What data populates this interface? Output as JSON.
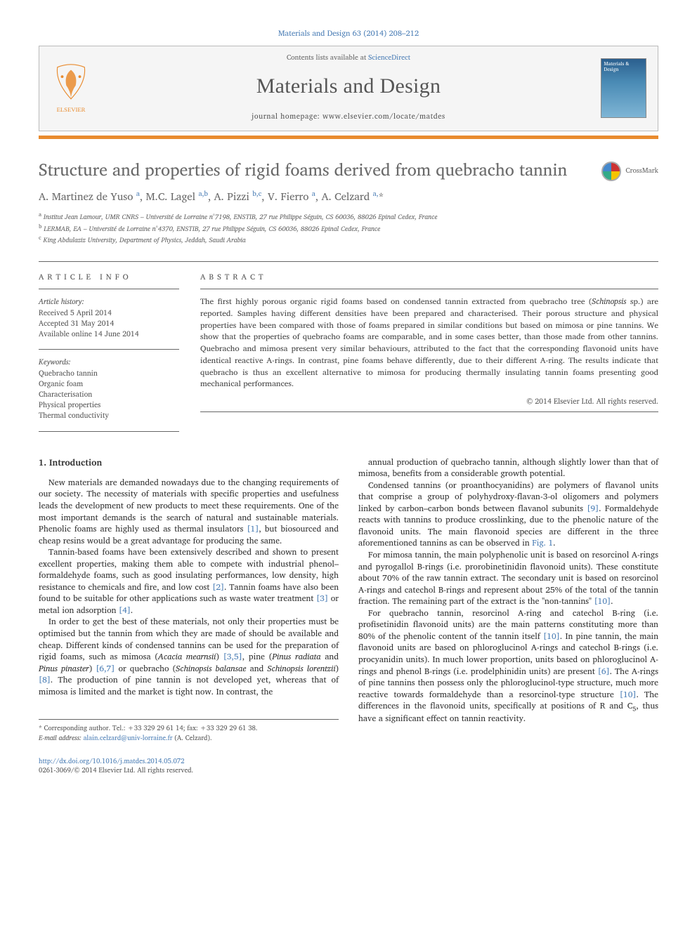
{
  "citation": "Materials and Design 63 (2014) 208–212",
  "header": {
    "contents_prefix": "Contents lists available at ",
    "contents_link": "ScienceDirect",
    "journal": "Materials and Design",
    "homepage_prefix": "journal homepage: ",
    "homepage": "www.elsevier.com/locate/matdes",
    "cover_title": "Materials & Design"
  },
  "crossmark_label": "CrossMark",
  "title": "Structure and properties of rigid foams derived from quebracho tannin",
  "authors_html": "A. Martinez de Yuso <sup class='sup-link'>a</sup>, M.C. Lagel <sup class='sup-link'>a,b</sup>, A. Pizzi <sup class='sup-link'>b,c</sup>, V. Fierro <sup class='sup-link'>a</sup>, A. Celzard <sup class='sup-link'>a,</sup>*",
  "affiliations": [
    "a Institut Jean Lamour, UMR CNRS – Université de Lorraine n°7198, ENSTIB, 27 rue Philippe Séguin, CS 60036, 88026 Epinal Cedex, France",
    "b LERMAB, EA – Université de Lorraine n°4370, ENSTIB, 27 rue Philippe Séguin, CS 60036, 88026 Epinal Cedex, France",
    "c King Abdulaziz University, Department of Physics, Jeddah, Saudi Arabia"
  ],
  "info_heading": "ARTICLE INFO",
  "abstract_heading": "ABSTRACT",
  "history": {
    "label": "Article history:",
    "received": "Received 5 April 2014",
    "accepted": "Accepted 31 May 2014",
    "online": "Available online 14 June 2014"
  },
  "keywords": {
    "label": "Keywords:",
    "items": [
      "Quebracho tannin",
      "Organic foam",
      "Characterisation",
      "Physical properties",
      "Thermal conductivity"
    ]
  },
  "abstract": "The first highly porous organic rigid foams based on condensed tannin extracted from quebracho tree (Schinopsis sp.) are reported. Samples having different densities have been prepared and characterised. Their porous structure and physical properties have been compared with those of foams prepared in similar conditions but based on mimosa or pine tannins. We show that the properties of quebracho foams are comparable, and in some cases better, than those made from other tannins. Quebracho and mimosa present very similar behaviours, attributed to the fact that the corresponding flavonoid units have identical reactive A-rings. In contrast, pine foams behave differently, due to their different A-ring. The results indicate that quebracho is thus an excellent alternative to mimosa for producing thermally insulating tannin foams presenting good mechanical performances.",
  "copyright": "© 2014 Elsevier Ltd. All rights reserved.",
  "section1_heading": "1. Introduction",
  "left_paras": [
    "New materials are demanded nowadays due to the changing requirements of our society. The necessity of materials with specific properties and usefulness leads the development of new products to meet these requirements. One of the most important demands is the search of natural and sustainable materials. Phenolic foams are highly used as thermal insulators <span class='ref-link'>[1]</span>, but biosourced and cheap resins would be a great advantage for producing the same.",
    "Tannin-based foams have been extensively described and shown to present excellent properties, making them able to compete with industrial phenol–formaldehyde foams, such as good insulating performances, low density, high resistance to chemicals and fire, and low cost <span class='ref-link'>[2]</span>. Tannin foams have also been found to be suitable for other applications such as waste water treatment <span class='ref-link'>[3]</span> or metal ion adsorption <span class='ref-link'>[4]</span>.",
    "In order to get the best of these materials, not only their properties must be optimised but the tannin from which they are made of should be available and cheap. Different kinds of condensed tannins can be used for the preparation of rigid foams, such as mimosa (<i>Acacia mearnsii</i>) <span class='ref-link'>[3,5]</span>, pine (<i>Pinus radiata</i> and <i>Pinus pinaster</i>) <span class='ref-link'>[6,7]</span> or quebracho (<i>Schinopsis balansae</i> and <i>Schinopsis lorentzii</i>) <span class='ref-link'>[8]</span>. The production of pine tannin is not developed yet, whereas that of mimosa is limited and the market is tight now. In contrast, the"
  ],
  "right_paras": [
    "annual production of quebracho tannin, although slightly lower than that of mimosa, benefits from a considerable growth potential.",
    "Condensed tannins (or proanthocyanidins) are polymers of flavanol units that comprise a group of polyhydroxy-flavan-3-ol oligomers and polymers linked by carbon–carbon bonds between flavanol subunits <span class='ref-link'>[9]</span>. Formaldehyde reacts with tannins to produce crosslinking, due to the phenolic nature of the flavonoid units. The main flavonoid species are different in the three aforementioned tannins as can be observed in <span class='ref-link'>Fig. 1</span>.",
    "For mimosa tannin, the main polyphenolic unit is based on resorcinol A-rings and pyrogallol B-rings (i.e. prorobinetinidin flavonoid units). These constitute about 70% of the raw tannin extract. The secondary unit is based on resorcinol A-rings and catechol B-rings and represent about 25% of the total of the tannin fraction. The remaining part of the extract is the \"non-tannins\" <span class='ref-link'>[10]</span>.",
    "For quebracho tannin, resorcinol A-ring and catechol B-ring (i.e. profisetinidin flavonoid units) are the main patterns constituting more than 80% of the phenolic content of the tannin itself <span class='ref-link'>[10]</span>. In pine tannin, the main flavonoid units are based on phloroglucinol A-rings and catechol B-rings (i.e. procyanidin units). In much lower proportion, units based on phloroglucinol A-rings and phenol B-rings (i.e. prodelphinidin units) are present <span class='ref-link'>[6]</span>. The A-rings of pine tannins then possess only the phloroglucinol-type structure, much more reactive towards formaldehyde than a resorcinol-type structure <span class='ref-link'>[10]</span>. The differences in the flavonoid units, specifically at positions of R and C<sub>5</sub>, thus have a significant effect on tannin reactivity."
  ],
  "footer": {
    "corr": "* Corresponding author. Tel.: +33 329 29 61 14; fax: +33 329 29 61 38.",
    "email_label": "E-mail address: ",
    "email": "alain.celzard@univ-lorraine.fr",
    "email_suffix": " (A. Celzard)."
  },
  "doi": {
    "url": "http://dx.doi.org/10.1016/j.matdes.2014.05.072",
    "line2": "0261-3069/© 2014 Elsevier Ltd. All rights reserved."
  },
  "colors": {
    "link": "#4a7db5",
    "orange_bar": "#e98b2e",
    "heading_gray": "#6a6a6a",
    "body_text": "#333333",
    "meta_text": "#555555"
  }
}
